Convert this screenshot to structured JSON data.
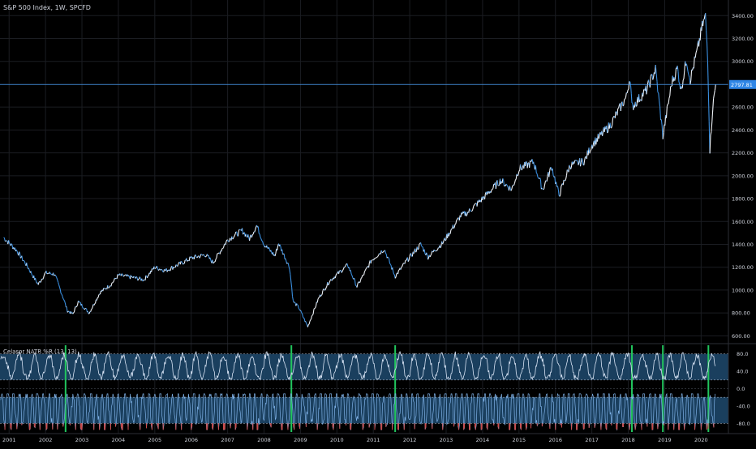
{
  "colors": {
    "background": "#000000",
    "grid": "#1b1d22",
    "axis_text": "#cfd3dc",
    "price_up": "#eef2f7",
    "price_down": "#3a8fe0",
    "price_line": "#4a9ff5",
    "price_label_bg": "#2f86e6",
    "osc_band": "#1e4a6e",
    "osc_line_upper": "#d7e3f4",
    "osc_line_lower": "#7fb2e8",
    "osc_line_white": "#f2f2f2",
    "oversold_red": "#d24e4e",
    "signal_green": "#22c55e",
    "divider": "#2b2e36"
  },
  "chart_data": [
    {
      "type": "line",
      "title": "S&P 500 Index, 1W, SPCFD",
      "x": [
        "2001",
        "2002",
        "2003",
        "2004",
        "2005",
        "2006",
        "2007",
        "2008",
        "2009",
        "2010",
        "2011",
        "2012",
        "2013",
        "2014",
        "2015",
        "2016",
        "2017",
        "2018",
        "2019",
        "2020"
      ],
      "ylim": [
        560,
        3480
      ],
      "yticks": [
        600,
        800,
        1000,
        1200,
        1400,
        1600,
        1800,
        2000,
        2200,
        2400,
        2600,
        2800,
        3000,
        3200,
        3400
      ],
      "ytick_labels": [
        "600.00",
        "800.00",
        "1000.00",
        "1200.00",
        "1400.00",
        "1600.00",
        "1800.00",
        "2000.00",
        "2200.00",
        "2400.00",
        "2600.00",
        "2800.00",
        "3000.00",
        "3200.00",
        "3400.00"
      ],
      "last_price": 2797.81,
      "last_price_label": "2797.81",
      "series": [
        {
          "points": [
            [
              2000.85,
              1460
            ],
            [
              2001.2,
              1350
            ],
            [
              2001.5,
              1210
            ],
            [
              2001.7,
              1100
            ],
            [
              2001.8,
              1050
            ],
            [
              2002.0,
              1150
            ],
            [
              2002.25,
              1140
            ],
            [
              2002.5,
              920
            ],
            [
              2002.6,
              820
            ],
            [
              2002.75,
              790
            ],
            [
              2002.9,
              900
            ],
            [
              2003.2,
              800
            ],
            [
              2003.5,
              980
            ],
            [
              2003.8,
              1050
            ],
            [
              2004.0,
              1130
            ],
            [
              2004.4,
              1110
            ],
            [
              2004.7,
              1090
            ],
            [
              2005.0,
              1200
            ],
            [
              2005.3,
              1170
            ],
            [
              2005.7,
              1230
            ],
            [
              2006.0,
              1280
            ],
            [
              2006.4,
              1310
            ],
            [
              2006.6,
              1240
            ],
            [
              2007.0,
              1440
            ],
            [
              2007.4,
              1520
            ],
            [
              2007.6,
              1450
            ],
            [
              2007.8,
              1565
            ],
            [
              2008.0,
              1400
            ],
            [
              2008.3,
              1300
            ],
            [
              2008.4,
              1410
            ],
            [
              2008.7,
              1200
            ],
            [
              2008.8,
              900
            ],
            [
              2008.95,
              850
            ],
            [
              2009.2,
              680
            ],
            [
              2009.5,
              930
            ],
            [
              2009.8,
              1080
            ],
            [
              2010.3,
              1220
            ],
            [
              2010.55,
              1030
            ],
            [
              2010.95,
              1260
            ],
            [
              2011.3,
              1360
            ],
            [
              2011.6,
              1120
            ],
            [
              2011.9,
              1250
            ],
            [
              2012.3,
              1400
            ],
            [
              2012.5,
              1290
            ],
            [
              2012.9,
              1410
            ],
            [
              2013.4,
              1650
            ],
            [
              2013.6,
              1680
            ],
            [
              2014.0,
              1800
            ],
            [
              2014.5,
              1960
            ],
            [
              2014.8,
              1880
            ],
            [
              2015.0,
              2060
            ],
            [
              2015.4,
              2120
            ],
            [
              2015.65,
              1880
            ],
            [
              2015.9,
              2080
            ],
            [
              2016.1,
              1830
            ],
            [
              2016.4,
              2090
            ],
            [
              2016.8,
              2130
            ],
            [
              2017.0,
              2270
            ],
            [
              2017.5,
              2440
            ],
            [
              2017.95,
              2690
            ],
            [
              2018.05,
              2870
            ],
            [
              2018.1,
              2600
            ],
            [
              2018.5,
              2750
            ],
            [
              2018.75,
              2930
            ],
            [
              2018.95,
              2350
            ],
            [
              2019.2,
              2820
            ],
            [
              2019.35,
              2940
            ],
            [
              2019.45,
              2750
            ],
            [
              2019.6,
              3020
            ],
            [
              2019.7,
              2840
            ],
            [
              2019.9,
              3100
            ],
            [
              2020.05,
              3330
            ],
            [
              2020.12,
              3390
            ],
            [
              2020.18,
              3050
            ],
            [
              2020.24,
              2230
            ],
            [
              2020.32,
              2600
            ],
            [
              2020.4,
              2797.81
            ]
          ]
        }
      ]
    },
    {
      "type": "line",
      "title": "Celasor NATR %R (13, 13)",
      "x": [
        "2001",
        "2002",
        "2003",
        "2004",
        "2005",
        "2006",
        "2007",
        "2008",
        "2009",
        "2010",
        "2011",
        "2012",
        "2013",
        "2014",
        "2015",
        "2016",
        "2017",
        "2018",
        "2019",
        "2020"
      ],
      "ylim": [
        -100,
        100
      ],
      "yticks": [
        80,
        40,
        0,
        -40,
        -80
      ],
      "ytick_labels": [
        "80.0",
        "40.0",
        "0.0",
        "-40.0",
        "-80.0"
      ],
      "bands": [
        [
          20,
          80
        ],
        [
          -80,
          -20
        ]
      ],
      "signal_dates": [
        2002.55,
        2008.75,
        2011.6,
        2018.1,
        2018.95,
        2020.2
      ]
    }
  ]
}
